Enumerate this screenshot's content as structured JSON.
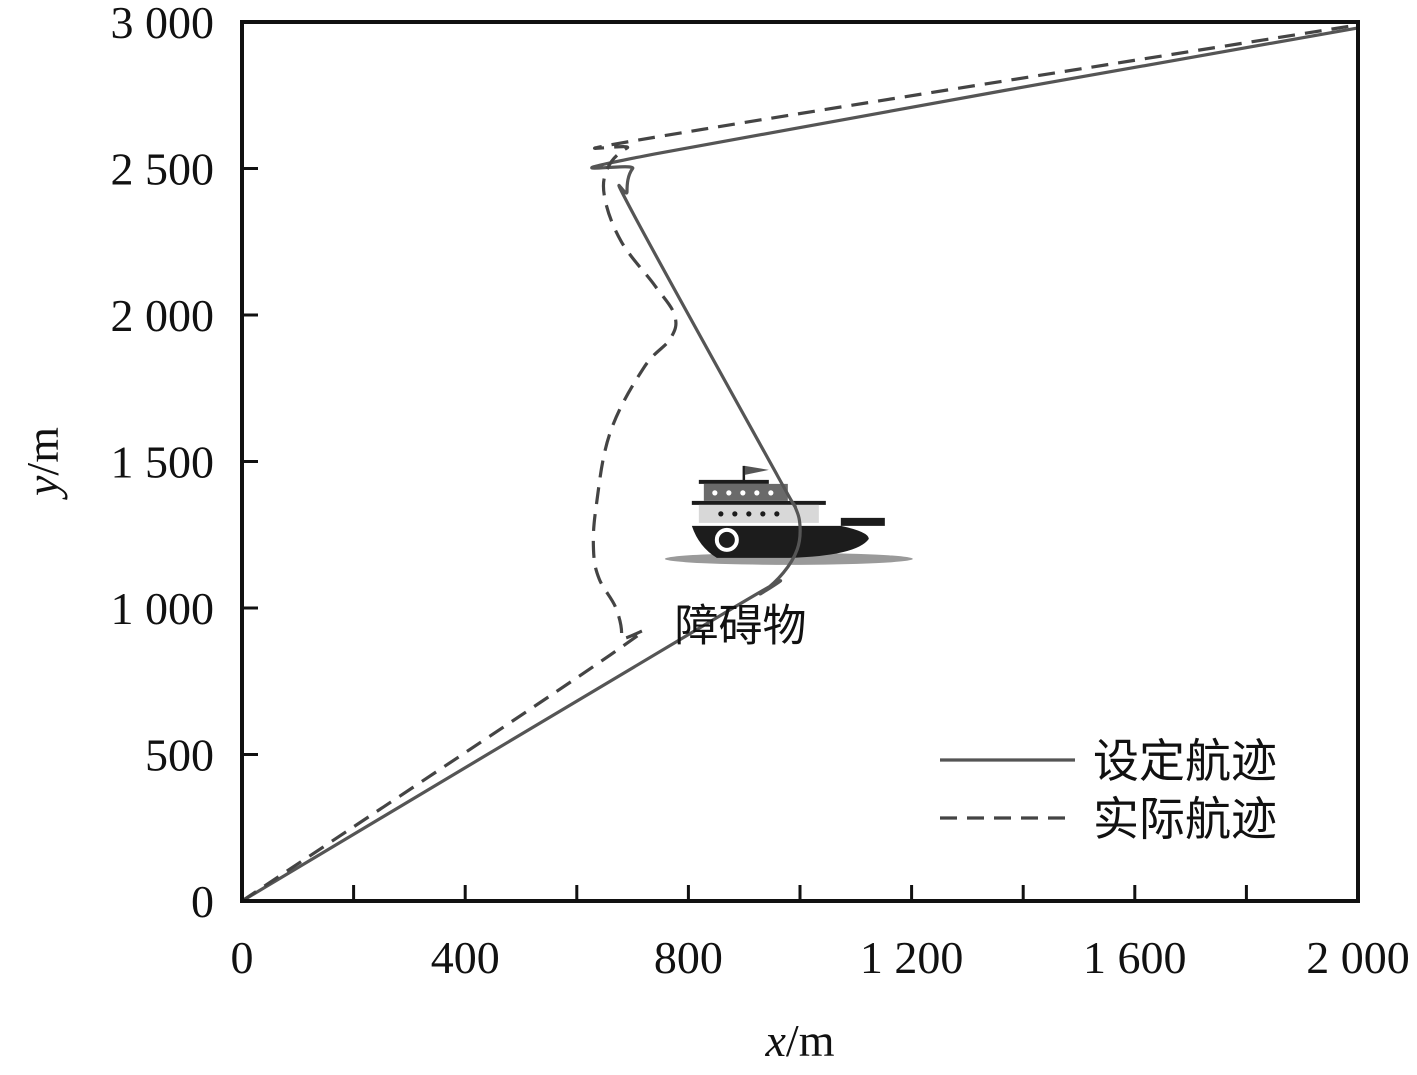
{
  "chart_data": {
    "type": "line",
    "xlabel_var": "x",
    "xlabel_unit": "/m",
    "ylabel_var": "y",
    "ylabel_unit": "/m",
    "xlim": [
      0,
      2000
    ],
    "ylim": [
      0,
      3000
    ],
    "x_ticks": [
      0,
      400,
      800,
      1200,
      1600,
      2000
    ],
    "x_tick_labels": [
      "0",
      "400",
      "800",
      "1 200",
      "1 600",
      "2 000"
    ],
    "x_minor_ticks": [
      200,
      600,
      1000,
      1400,
      1800
    ],
    "y_ticks": [
      0,
      500,
      1000,
      1500,
      2000,
      2500,
      3000
    ],
    "y_tick_labels": [
      "0",
      "500",
      "1 000",
      "1 500",
      "2 000",
      "2 500",
      "3 000"
    ],
    "grid": false,
    "legend_position": "bottom-right",
    "series": [
      {
        "name": "设定航迹",
        "style": "solid",
        "color": "#555555",
        "x": [
          0,
          880,
          930,
          970,
          995,
          1000,
          990,
          960,
          700,
          690,
          700,
          740,
          2000
        ],
        "y": [
          0,
          1000,
          1050,
          1120,
          1200,
          1280,
          1350,
          1450,
          2350,
          2420,
          2500,
          2550,
          2980
        ]
      },
      {
        "name": "实际航迹",
        "style": "dashed",
        "color": "#444444",
        "x": [
          0,
          660,
          680,
          670,
          640,
          630,
          635,
          660,
          720,
          768,
          775,
          740,
          680,
          650,
          655,
          690,
          750,
          2000
        ],
        "y": [
          0,
          840,
          900,
          1000,
          1100,
          1200,
          1350,
          1600,
          1820,
          1920,
          2000,
          2100,
          2250,
          2400,
          2500,
          2570,
          2610,
          2990
        ]
      }
    ],
    "annotations": [
      {
        "text": "障碍物",
        "x": 915,
        "y": 940
      }
    ],
    "obstacle": {
      "icon": "ship-icon",
      "x": 980,
      "y": 1270
    }
  }
}
